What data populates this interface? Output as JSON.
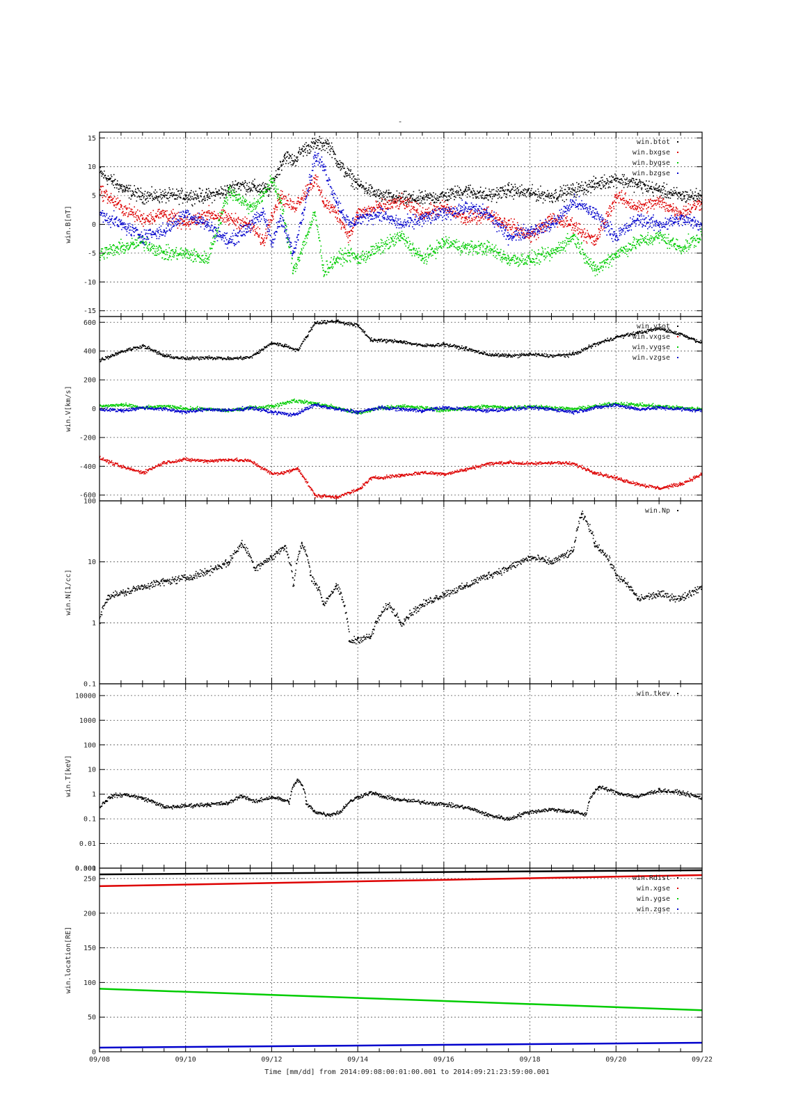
{
  "page": {
    "top_mark": "-",
    "xlabel": "Time [mm/dd]  from 2014:09:08:00:01:00.001  to  2014:09:21:23:59:00.001",
    "colors": {
      "black": "#000000",
      "red": "#dd0000",
      "green": "#00cc00",
      "blue": "#0000cc"
    }
  },
  "chart_data": [
    {
      "type": "scatter",
      "id": "b",
      "ylabel": "win.B[nT]",
      "yscale": "linear",
      "ylim": [
        -16,
        16
      ],
      "yticks": [
        -15,
        -10,
        -5,
        0,
        5,
        10,
        15
      ],
      "ytick_labels": [
        "-15",
        "-10",
        "-5",
        "0",
        "5",
        "10",
        "15"
      ],
      "x_range_days": [
        0,
        14
      ],
      "x_ticks": [
        "09/08",
        "09/10",
        "09/12",
        "09/14",
        "09/16",
        "09/18",
        "09/20",
        "09/22"
      ],
      "legend_position": "top-right",
      "series": [
        {
          "name": "win.btot",
          "color": "#000000",
          "x": [
            0,
            0.3,
            0.6,
            1,
            1.5,
            2,
            2.5,
            3,
            3.2,
            3.6,
            3.95,
            4.05,
            4.3,
            4.5,
            4.7,
            5,
            5.3,
            5.6,
            6,
            6.5,
            7,
            7.5,
            8,
            8.5,
            9,
            9.5,
            10,
            10.5,
            11,
            11.5,
            12,
            12.5,
            13,
            13.5,
            14
          ],
          "y": [
            9,
            7.5,
            6,
            5,
            5,
            5,
            5,
            6,
            7,
            6.5,
            6,
            8,
            12,
            11,
            13,
            14,
            14,
            10,
            7,
            5,
            4.5,
            4.5,
            5,
            6,
            5,
            6,
            5.5,
            5,
            6,
            7,
            8,
            7,
            6,
            5,
            5
          ]
        },
        {
          "name": "win.bxgse",
          "color": "#dd0000",
          "x": [
            0,
            0.5,
            1,
            1.5,
            2,
            2.5,
            3,
            3.5,
            3.8,
            4,
            4.2,
            4.5,
            5,
            5.2,
            5.5,
            5.8,
            6,
            6.5,
            7,
            7.5,
            8,
            8.5,
            9,
            9.5,
            10,
            10.5,
            11,
            11.5,
            12,
            12.5,
            13,
            13.5,
            14
          ],
          "y": [
            6,
            3,
            1,
            2,
            0,
            2,
            1,
            0,
            -3,
            2,
            5,
            3,
            8,
            4,
            2,
            -2,
            2,
            3,
            4,
            2,
            3,
            1,
            2,
            0,
            -2,
            1,
            0,
            -3,
            5,
            3,
            4,
            2,
            4
          ]
        },
        {
          "name": "win.bygse",
          "color": "#00cc00",
          "x": [
            0,
            0.5,
            1,
            1.5,
            2,
            2.5,
            3,
            3.5,
            3.8,
            4,
            4.2,
            4.5,
            5,
            5.2,
            5.5,
            5.8,
            6,
            6.5,
            7,
            7.5,
            8,
            8.5,
            9,
            9.5,
            10,
            10.5,
            11,
            11.5,
            12,
            12.5,
            13,
            13.5,
            14
          ],
          "y": [
            -5,
            -4,
            -3,
            -5,
            -5,
            -6,
            6,
            3,
            5,
            8,
            4,
            -8,
            2,
            -8,
            -6,
            -5,
            -6,
            -4,
            -2,
            -6,
            -3,
            -4,
            -4,
            -6,
            -6,
            -5,
            -2,
            -8,
            -5,
            -3,
            -2,
            -4,
            -2
          ]
        },
        {
          "name": "win.bzgse",
          "color": "#0000cc",
          "x": [
            0,
            0.5,
            1,
            1.5,
            2,
            2.5,
            3,
            3.5,
            3.8,
            4,
            4.2,
            4.5,
            5,
            5.2,
            5.5,
            5.8,
            6,
            6.5,
            7,
            7.5,
            8,
            8.5,
            9,
            9.5,
            10,
            10.5,
            11,
            11.5,
            12,
            12.5,
            13,
            13.5,
            14
          ],
          "y": [
            2,
            0,
            -2,
            -1,
            2,
            0,
            -3,
            0,
            2,
            -3,
            1,
            -5,
            12,
            10,
            4,
            0,
            1,
            2,
            0,
            1,
            2,
            3,
            2,
            -2,
            -1,
            0,
            4,
            2,
            -2,
            1,
            0,
            1,
            0
          ]
        }
      ]
    },
    {
      "type": "scatter",
      "id": "v",
      "ylabel": "win.V[km/s]",
      "yscale": "linear",
      "ylim": [
        -640,
        640
      ],
      "yticks": [
        -600,
        -400,
        -200,
        0,
        200,
        400,
        600
      ],
      "ytick_labels": [
        "-600",
        "-400",
        "-200",
        "0",
        "200",
        "400",
        "600"
      ],
      "x_range_days": [
        0,
        14
      ],
      "x_ticks": [
        "09/08",
        "09/10",
        "09/12",
        "09/14",
        "09/16",
        "09/18",
        "09/20",
        "09/22"
      ],
      "legend_position": "top-right",
      "series": [
        {
          "name": "win.vtot",
          "color": "#000000",
          "x": [
            0,
            0.5,
            1,
            1.5,
            2,
            2.5,
            3,
            3.5,
            4,
            4.3,
            4.6,
            5,
            5.5,
            6,
            6.3,
            7,
            7.5,
            8,
            8.5,
            9,
            9.5,
            10,
            10.5,
            11,
            11.5,
            12,
            12.5,
            13,
            13.5,
            14
          ],
          "y": [
            340,
            400,
            440,
            370,
            350,
            360,
            350,
            360,
            460,
            440,
            410,
            600,
            610,
            580,
            480,
            470,
            440,
            450,
            420,
            380,
            370,
            380,
            370,
            380,
            450,
            500,
            530,
            560,
            520,
            460
          ]
        },
        {
          "name": "win.vxgse",
          "color": "#dd0000",
          "x": [
            0,
            0.5,
            1,
            1.5,
            2,
            2.5,
            3,
            3.5,
            4,
            4.3,
            4.6,
            5,
            5.5,
            6,
            6.3,
            7,
            7.5,
            8,
            8.5,
            9,
            9.5,
            10,
            10.5,
            11,
            11.5,
            12,
            12.5,
            13,
            13.5,
            14
          ],
          "y": [
            -340,
            -400,
            -440,
            -370,
            -350,
            -360,
            -350,
            -360,
            -450,
            -440,
            -410,
            -600,
            -610,
            -560,
            -480,
            -460,
            -440,
            -450,
            -420,
            -380,
            -370,
            -380,
            -370,
            -380,
            -440,
            -480,
            -520,
            -550,
            -520,
            -450
          ]
        },
        {
          "name": "win.vygse",
          "color": "#00cc00",
          "x": [
            0,
            0.5,
            1,
            1.5,
            2,
            2.5,
            3,
            3.5,
            4,
            4.5,
            5,
            5.5,
            6,
            6.5,
            7,
            7.5,
            8,
            8.5,
            9,
            9.5,
            10,
            10.5,
            11,
            11.5,
            12,
            12.5,
            13,
            13.5,
            14
          ],
          "y": [
            20,
            30,
            10,
            20,
            5,
            0,
            -10,
            10,
            20,
            60,
            40,
            10,
            -30,
            10,
            20,
            10,
            -10,
            10,
            20,
            10,
            20,
            10,
            0,
            20,
            40,
            30,
            20,
            10,
            0
          ]
        },
        {
          "name": "win.vzgse",
          "color": "#0000cc",
          "x": [
            0,
            0.5,
            1,
            1.5,
            2,
            2.5,
            3,
            3.5,
            4,
            4.5,
            5,
            5.5,
            6,
            6.5,
            7,
            7.5,
            8,
            8.5,
            9,
            9.5,
            10,
            10.5,
            11,
            11.5,
            12,
            12.5,
            13,
            13.5,
            14
          ],
          "y": [
            0,
            -10,
            10,
            0,
            -20,
            0,
            -10,
            10,
            -20,
            -40,
            30,
            0,
            -20,
            10,
            0,
            -10,
            10,
            0,
            -10,
            0,
            10,
            0,
            -20,
            10,
            30,
            0,
            10,
            0,
            -10
          ]
        }
      ]
    },
    {
      "type": "scatter",
      "id": "n",
      "ylabel": "win.N[1/cc]",
      "yscale": "log",
      "ylim": [
        0.1,
        100
      ],
      "yticks": [
        0.1,
        1,
        10,
        100
      ],
      "ytick_labels": [
        "0.1",
        "1",
        "10",
        "100"
      ],
      "x_range_days": [
        0,
        14
      ],
      "x_ticks": [
        "09/08",
        "09/10",
        "09/12",
        "09/14",
        "09/16",
        "09/18",
        "09/20",
        "09/22"
      ],
      "legend_position": "top-right",
      "series": [
        {
          "name": "win.Np",
          "color": "#000000",
          "x": [
            0,
            0.2,
            0.6,
            1,
            1.5,
            2,
            2.5,
            3,
            3.3,
            3.6,
            4,
            4.3,
            4.5,
            4.7,
            4.9,
            5.2,
            5.5,
            5.8,
            6,
            6.3,
            6.7,
            7,
            7.5,
            8,
            8.5,
            9,
            9.5,
            10,
            10.5,
            11,
            11.2,
            11.5,
            12,
            12.5,
            13,
            13.5,
            14
          ],
          "y": [
            1.2,
            2.8,
            3.2,
            4,
            4.8,
            5.5,
            7,
            10,
            20,
            8,
            12,
            18,
            4,
            20,
            6,
            2,
            4,
            0.5,
            0.55,
            0.6,
            2,
            1,
            2,
            3,
            4,
            6,
            8,
            12,
            10,
            15,
            60,
            20,
            6,
            2.5,
            3,
            2.5,
            4
          ]
        }
      ]
    },
    {
      "type": "scatter",
      "id": "t",
      "ylabel": "win.T[keV]",
      "yscale": "log",
      "ylim": [
        0.001,
        30000
      ],
      "yticks": [
        0.001,
        0.01,
        0.1,
        1,
        10,
        100,
        1000,
        10000
      ],
      "ytick_labels": [
        "0.001",
        "0.01",
        "0.1",
        "1",
        "10",
        "100",
        "1000",
        "10000"
      ],
      "axis_bottom_overlap_label": "0.300",
      "x_range_days": [
        0,
        14
      ],
      "x_ticks": [
        "09/08",
        "09/10",
        "09/12",
        "09/14",
        "09/16",
        "09/18",
        "09/20",
        "09/22"
      ],
      "legend_position": "top-right",
      "series": [
        {
          "name": "win.tkev",
          "color": "#000000",
          "x": [
            0,
            0.3,
            0.6,
            1,
            1.5,
            2,
            2.5,
            3,
            3.3,
            3.6,
            4,
            4.4,
            4.6,
            4.8,
            5,
            5.3,
            5.6,
            6,
            6.3,
            6.6,
            7,
            7.5,
            8,
            8.5,
            9,
            9.5,
            10,
            10.5,
            11,
            11.3,
            11.6,
            12,
            12.5,
            13,
            13.5,
            14
          ],
          "y": [
            0.3,
            0.9,
            1,
            0.7,
            0.3,
            0.35,
            0.4,
            0.45,
            0.9,
            0.5,
            0.8,
            0.5,
            4,
            0.4,
            0.2,
            0.15,
            0.2,
            0.8,
            1.2,
            0.8,
            0.6,
            0.5,
            0.4,
            0.3,
            0.15,
            0.1,
            0.2,
            0.25,
            0.2,
            0.15,
            2,
            1.2,
            0.8,
            1.5,
            1.2,
            0.7
          ]
        }
      ]
    },
    {
      "type": "line",
      "id": "loc",
      "ylabel": "win.location[RE]",
      "yscale": "linear",
      "ylim": [
        0,
        265
      ],
      "yticks": [
        0,
        50,
        100,
        150,
        200,
        250
      ],
      "ytick_labels": [
        "0",
        "50",
        "100",
        "150",
        "200",
        "250"
      ],
      "x_range_days": [
        0,
        14
      ],
      "x_ticks": [
        "09/08",
        "09/10",
        "09/12",
        "09/14",
        "09/16",
        "09/18",
        "09/20",
        "09/22"
      ],
      "legend_position": "top-right",
      "series": [
        {
          "name": "win.Rdist",
          "color": "#000000",
          "x": [
            0,
            14
          ],
          "y": [
            256,
            262
          ]
        },
        {
          "name": "win.xgse",
          "color": "#dd0000",
          "x": [
            0,
            14
          ],
          "y": [
            239,
            255
          ]
        },
        {
          "name": "win.ygse",
          "color": "#00cc00",
          "x": [
            0,
            14
          ],
          "y": [
            91,
            60
          ]
        },
        {
          "name": "win.zgse",
          "color": "#0000cc",
          "x": [
            0,
            14
          ],
          "y": [
            6,
            13
          ]
        }
      ]
    }
  ]
}
